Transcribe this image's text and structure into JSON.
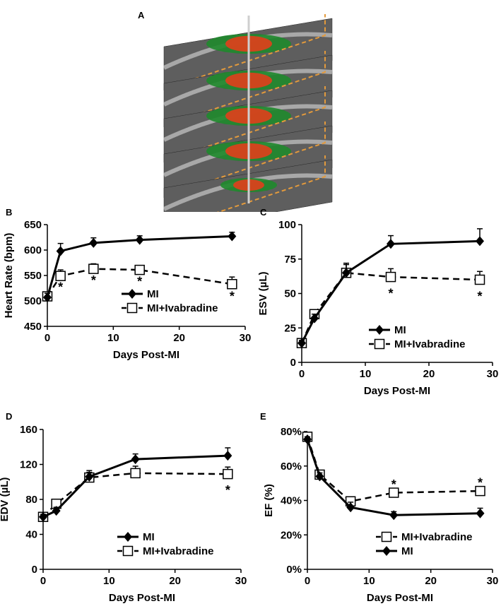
{
  "panels": {
    "a": "A",
    "b": "B",
    "c": "C",
    "d": "D",
    "e": "E"
  },
  "colors": {
    "slice_gray": "#6f6f6f",
    "myocardium_green": "#1f8a2c",
    "infarct_red": "#d8421c",
    "frame_orange": "#e39a3c"
  },
  "chart_data": [
    {
      "id": "B",
      "type": "line",
      "xlabel": "Days Post-MI",
      "ylabel": "Heart Rate (bpm)",
      "xlim": [
        0,
        30
      ],
      "ylim": [
        450,
        650
      ],
      "xticks": [
        0,
        10,
        20,
        30
      ],
      "yticks": [
        450,
        500,
        550,
        600,
        650
      ],
      "ytick_labels": [
        "450",
        "500",
        "550",
        "600",
        "650"
      ],
      "legend_position": "bottom-right",
      "legend_order": [
        "MI",
        "MI+Ivabradine"
      ],
      "series": [
        {
          "name": "MI",
          "style": "solid-diamond",
          "x": [
            0,
            2,
            7,
            14,
            28
          ],
          "y": [
            507,
            598,
            614,
            620,
            627
          ],
          "err": [
            8,
            15,
            10,
            8,
            8
          ]
        },
        {
          "name": "MI+Ivabradine",
          "style": "dashed-open-square",
          "x": [
            0,
            2,
            7,
            14,
            28
          ],
          "y": [
            509,
            549,
            563,
            561,
            533
          ],
          "err": [
            8,
            12,
            10,
            8,
            14
          ]
        }
      ],
      "significance": [
        {
          "x": 2,
          "y": 530,
          "label": "*"
        },
        {
          "x": 7,
          "y": 543,
          "label": "*"
        },
        {
          "x": 14,
          "y": 541,
          "label": "*"
        },
        {
          "x": 28,
          "y": 512,
          "label": "*"
        }
      ]
    },
    {
      "id": "C",
      "type": "line",
      "xlabel": "Days Post-MI",
      "ylabel": "ESV (µL)",
      "xlim": [
        0,
        30
      ],
      "ylim": [
        0,
        100
      ],
      "xticks": [
        0,
        10,
        20,
        30
      ],
      "yticks": [
        0,
        25,
        50,
        75,
        100
      ],
      "ytick_labels": [
        "0",
        "25",
        "50",
        "75",
        "100"
      ],
      "legend_position": "bottom-right",
      "legend_order": [
        "MI",
        "MI+Ivabradine"
      ],
      "series": [
        {
          "name": "MI",
          "style": "solid-diamond",
          "x": [
            0,
            2,
            7,
            14,
            28
          ],
          "y": [
            14,
            32,
            65,
            86,
            88
          ],
          "err": [
            2,
            3,
            7,
            6,
            9
          ]
        },
        {
          "name": "MI+Ivabradine",
          "style": "dashed-open-square",
          "x": [
            0,
            2,
            7,
            14,
            28
          ],
          "y": [
            14,
            35,
            65,
            62,
            60
          ],
          "err": [
            2,
            3,
            6,
            6,
            6
          ]
        }
      ],
      "significance": [
        {
          "x": 14,
          "y": 51,
          "label": "*"
        },
        {
          "x": 28,
          "y": 49,
          "label": "*"
        }
      ]
    },
    {
      "id": "D",
      "type": "line",
      "xlabel": "Days Post-MI",
      "ylabel": "EDV (µL)",
      "xlim": [
        0,
        30
      ],
      "ylim": [
        0,
        160
      ],
      "xticks": [
        0,
        10,
        20,
        30
      ],
      "yticks": [
        0,
        40,
        80,
        120,
        160
      ],
      "ytick_labels": [
        "0",
        "40",
        "80",
        "120",
        "160"
      ],
      "legend_position": "bottom-right",
      "legend_order": [
        "MI",
        "MI+Ivabradine"
      ],
      "series": [
        {
          "name": "MI",
          "style": "solid-diamond",
          "x": [
            0,
            2,
            7,
            14,
            28
          ],
          "y": [
            60,
            67,
            106,
            126,
            130
          ],
          "err": [
            3,
            4,
            7,
            6,
            9
          ]
        },
        {
          "name": "MI+Ivabradine",
          "style": "dashed-open-square",
          "x": [
            0,
            2,
            7,
            14,
            28
          ],
          "y": [
            60,
            75,
            105,
            110,
            109
          ],
          "err": [
            3,
            4,
            6,
            8,
            8
          ]
        }
      ],
      "significance": [
        {
          "x": 28,
          "y": 92,
          "label": "*"
        }
      ]
    },
    {
      "id": "E",
      "type": "line",
      "xlabel": "Days Post-MI",
      "ylabel": "EF (%)",
      "xlim": [
        0,
        30
      ],
      "ylim": [
        0,
        80
      ],
      "xticks": [
        0,
        10,
        20,
        30
      ],
      "yticks": [
        0,
        20,
        40,
        60,
        80
      ],
      "ytick_labels": [
        "0%",
        "20%",
        "40%",
        "60%",
        "80%"
      ],
      "legend_position": "bottom-right",
      "legend_order": [
        "MI+Ivabradine",
        "MI"
      ],
      "series": [
        {
          "name": "MI",
          "style": "solid-diamond",
          "x": [
            0,
            2,
            7,
            14,
            28
          ],
          "y": [
            75.5,
            54,
            36,
            31.5,
            32.5
          ],
          "err": [
            1.5,
            2,
            3,
            2,
            3
          ]
        },
        {
          "name": "MI+Ivabradine",
          "style": "dashed-open-square",
          "x": [
            0,
            2,
            7,
            14,
            28
          ],
          "y": [
            77,
            55,
            39.5,
            44.5,
            45.5
          ],
          "err": [
            1.5,
            2,
            2,
            2,
            2
          ]
        }
      ],
      "significance": [
        {
          "x": 14,
          "y": 50,
          "label": "*"
        },
        {
          "x": 28,
          "y": 51,
          "label": "*"
        }
      ]
    }
  ]
}
